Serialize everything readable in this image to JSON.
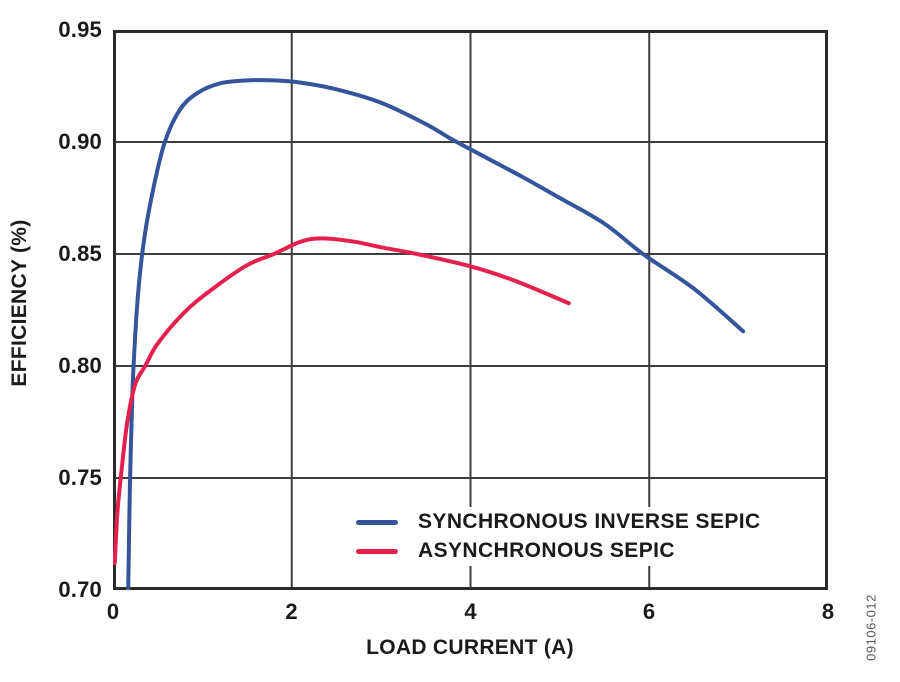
{
  "figure": {
    "code": "09106-012"
  },
  "chart_data": {
    "type": "line",
    "title": "",
    "xlabel": "LOAD CURRENT (A)",
    "ylabel": "EFFICIENCY (%)",
    "xlim": [
      0,
      8
    ],
    "ylim": [
      0.7,
      0.95
    ],
    "xticks": [
      0,
      2,
      4,
      6,
      8
    ],
    "xtick_labels": [
      "0",
      "2",
      "4",
      "6",
      "8"
    ],
    "ytick_labels": [
      "0.95",
      "0.90",
      "0.85",
      "0.80",
      "0.75",
      "0.70"
    ],
    "grid_x": [
      2,
      4,
      6
    ],
    "grid_y": [
      0.9,
      0.85,
      0.8,
      0.75
    ],
    "grid": true,
    "legend_position": "inside-bottom-center-right",
    "frame_color": "#2b2b2b",
    "grid_color": "#3d3d3d",
    "series": [
      {
        "name": "SYNCHRONOUS INVERSE SEPIC",
        "color": "#34549B",
        "x": [
          0.17,
          0.18,
          0.19,
          0.21,
          0.23,
          0.28,
          0.35,
          0.45,
          0.58,
          0.75,
          0.95,
          1.2,
          1.5,
          1.8,
          2.1,
          2.5,
          3.0,
          3.5,
          3.8,
          4.2,
          4.6,
          5.0,
          5.5,
          5.93,
          6.5,
          7.05
        ],
        "y": [
          0.7,
          0.725,
          0.748,
          0.778,
          0.8,
          0.832,
          0.857,
          0.879,
          0.9,
          0.9145,
          0.922,
          0.9262,
          0.9275,
          0.9275,
          0.9265,
          0.9235,
          0.9175,
          0.908,
          0.901,
          0.8925,
          0.884,
          0.875,
          0.8635,
          0.85,
          0.8345,
          0.8155
        ]
      },
      {
        "name": "ASYNCHRONOUS SEPIC",
        "color": "#E4204E",
        "x": [
          0.02,
          0.05,
          0.1,
          0.16,
          0.25,
          0.36,
          0.5,
          0.8,
          1.1,
          1.5,
          1.8,
          2.1,
          2.35,
          2.7,
          3.0,
          3.4,
          4.0,
          4.5,
          5.1
        ],
        "y": [
          0.712,
          0.735,
          0.755,
          0.775,
          0.792,
          0.8,
          0.81,
          0.824,
          0.834,
          0.845,
          0.85,
          0.8555,
          0.857,
          0.8555,
          0.853,
          0.85,
          0.8445,
          0.838,
          0.828
        ]
      }
    ]
  }
}
